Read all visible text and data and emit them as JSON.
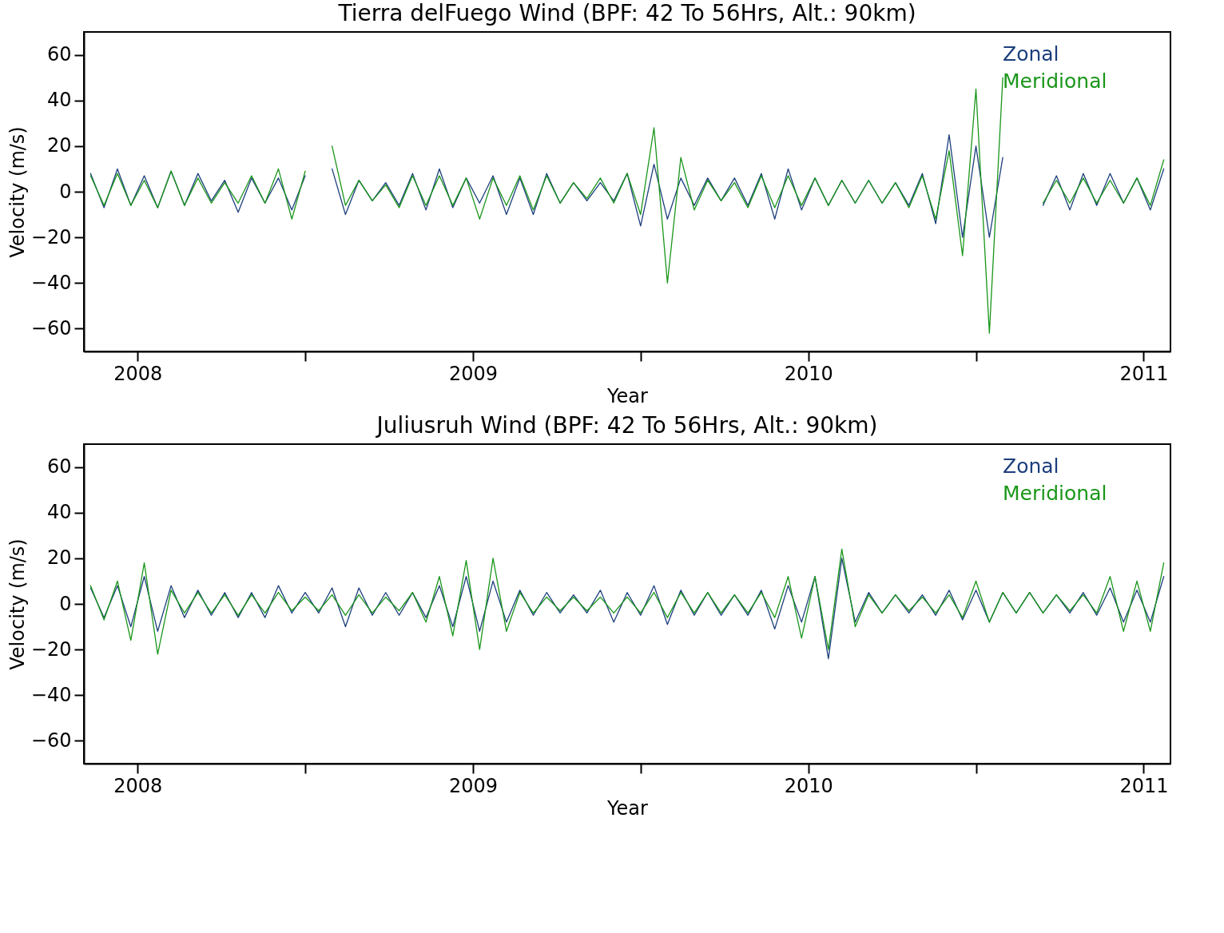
{
  "chart_data": [
    {
      "type": "line",
      "title": "Tierra delFuego Wind (BPF: 42 To 56Hrs, Alt.: 90km)",
      "xlabel": "Year",
      "ylabel": "Velocity (m/s)",
      "xlim": [
        2008.34,
        2011.58
      ],
      "ylim": [
        -70,
        70
      ],
      "yticks": [
        -60,
        -40,
        -20,
        0,
        20,
        40,
        60
      ],
      "xticks": [
        {
          "value": 2008.5,
          "label": "2008"
        },
        {
          "value": 2009,
          "label": null
        },
        {
          "value": 2009.5,
          "label": "2009"
        },
        {
          "value": 2010,
          "label": null
        },
        {
          "value": 2010.5,
          "label": "2010"
        },
        {
          "value": 2011,
          "label": null
        },
        {
          "value": 2011.5,
          "label": "2011"
        }
      ],
      "grid": false,
      "legend": "top right",
      "x": [
        2008.36,
        2008.4,
        2008.44,
        2008.48,
        2008.52,
        2008.56,
        2008.6,
        2008.64,
        2008.68,
        2008.72,
        2008.76,
        2008.8,
        2008.84,
        2008.88,
        2008.92,
        2008.96,
        2009.0,
        2009.04,
        2009.08,
        2009.12,
        2009.16,
        2009.2,
        2009.24,
        2009.28,
        2009.32,
        2009.36,
        2009.4,
        2009.44,
        2009.48,
        2009.52,
        2009.56,
        2009.6,
        2009.64,
        2009.68,
        2009.72,
        2009.76,
        2009.8,
        2009.84,
        2009.88,
        2009.92,
        2009.96,
        2010.0,
        2010.04,
        2010.08,
        2010.12,
        2010.16,
        2010.2,
        2010.24,
        2010.28,
        2010.32,
        2010.36,
        2010.4,
        2010.44,
        2010.48,
        2010.52,
        2010.56,
        2010.6,
        2010.64,
        2010.68,
        2010.72,
        2010.76,
        2010.8,
        2010.84,
        2010.88,
        2010.92,
        2010.96,
        2011.0,
        2011.04,
        2011.08,
        2011.12,
        2011.16,
        2011.2,
        2011.24,
        2011.28,
        2011.32,
        2011.36,
        2011.4,
        2011.44,
        2011.48,
        2011.52,
        2011.56
      ],
      "series": [
        {
          "name": "Zonal",
          "color": "#1c3f7c",
          "values": [
            8,
            -7,
            10,
            -6,
            7,
            -7,
            9,
            -6,
            8,
            -4,
            5,
            -9,
            6,
            -5,
            6,
            -8,
            7,
            null,
            10,
            -10,
            5,
            -4,
            4,
            -6,
            8,
            -8,
            10,
            -7,
            6,
            -5,
            7,
            -10,
            6,
            -10,
            8,
            -5,
            4,
            -4,
            4,
            -4,
            8,
            -15,
            12,
            -12,
            6,
            -6,
            6,
            -4,
            6,
            -6,
            8,
            -12,
            10,
            -8,
            6,
            -6,
            5,
            -5,
            5,
            -5,
            4,
            -6,
            8,
            -14,
            25,
            -20,
            20,
            -20,
            15,
            null,
            null,
            -6,
            7,
            -8,
            8,
            -6,
            8,
            -5,
            6,
            -8,
            10
          ]
        },
        {
          "name": "Meridional",
          "color": "#1a961a",
          "values": [
            7,
            -6,
            8,
            -6,
            5,
            -7,
            9,
            -6,
            6,
            -5,
            4,
            -5,
            7,
            -5,
            10,
            -12,
            9,
            null,
            20,
            -6,
            5,
            -4,
            3,
            -7,
            7,
            -6,
            7,
            -6,
            6,
            -12,
            6,
            -6,
            7,
            -8,
            7,
            -5,
            4,
            -3,
            6,
            -5,
            8,
            -10,
            28,
            -40,
            15,
            -8,
            5,
            -4,
            4,
            -7,
            7,
            -7,
            7,
            -6,
            6,
            -6,
            5,
            -5,
            5,
            -5,
            4,
            -7,
            7,
            -12,
            18,
            -28,
            45,
            -62,
            50,
            null,
            null,
            -5,
            5,
            -5,
            6,
            -5,
            5,
            -5,
            6,
            -6,
            14
          ]
        }
      ]
    },
    {
      "type": "line",
      "title": "Juliusruh Wind (BPF: 42 To 56Hrs, Alt.: 90km)",
      "xlabel": "Year",
      "ylabel": "Velocity (m/s)",
      "xlim": [
        2008.34,
        2011.58
      ],
      "ylim": [
        -70,
        70
      ],
      "yticks": [
        -60,
        -40,
        -20,
        0,
        20,
        40,
        60
      ],
      "xticks": [
        {
          "value": 2008.5,
          "label": "2008"
        },
        {
          "value": 2009,
          "label": null
        },
        {
          "value": 2009.5,
          "label": "2009"
        },
        {
          "value": 2010,
          "label": null
        },
        {
          "value": 2010.5,
          "label": "2010"
        },
        {
          "value": 2011,
          "label": null
        },
        {
          "value": 2011.5,
          "label": "2011"
        }
      ],
      "grid": false,
      "legend": "top right",
      "x": [
        2008.36,
        2008.4,
        2008.44,
        2008.48,
        2008.52,
        2008.56,
        2008.6,
        2008.64,
        2008.68,
        2008.72,
        2008.76,
        2008.8,
        2008.84,
        2008.88,
        2008.92,
        2008.96,
        2009.0,
        2009.04,
        2009.08,
        2009.12,
        2009.16,
        2009.2,
        2009.24,
        2009.28,
        2009.32,
        2009.36,
        2009.4,
        2009.44,
        2009.48,
        2009.52,
        2009.56,
        2009.6,
        2009.64,
        2009.68,
        2009.72,
        2009.76,
        2009.8,
        2009.84,
        2009.88,
        2009.92,
        2009.96,
        2010.0,
        2010.04,
        2010.08,
        2010.12,
        2010.16,
        2010.2,
        2010.24,
        2010.28,
        2010.32,
        2010.36,
        2010.4,
        2010.44,
        2010.48,
        2010.52,
        2010.56,
        2010.6,
        2010.64,
        2010.68,
        2010.72,
        2010.76,
        2010.8,
        2010.84,
        2010.88,
        2010.92,
        2010.96,
        2011.0,
        2011.04,
        2011.08,
        2011.12,
        2011.16,
        2011.2,
        2011.24,
        2011.28,
        2011.32,
        2011.36,
        2011.4,
        2011.44,
        2011.48,
        2011.52,
        2011.56
      ],
      "series": [
        {
          "name": "Zonal",
          "color": "#1c3f7c",
          "values": [
            7,
            -6,
            8,
            -10,
            12,
            -12,
            8,
            -6,
            6,
            -5,
            5,
            -6,
            5,
            -6,
            8,
            -4,
            5,
            -4,
            7,
            -10,
            7,
            -5,
            5,
            -5,
            5,
            -6,
            8,
            -10,
            12,
            -12,
            10,
            -8,
            6,
            -5,
            5,
            -4,
            4,
            -4,
            6,
            -8,
            5,
            -5,
            8,
            -9,
            6,
            -5,
            5,
            -5,
            4,
            -5,
            6,
            -11,
            8,
            -8,
            12,
            -24,
            20,
            -8,
            5,
            -4,
            4,
            -4,
            4,
            -5,
            6,
            -7,
            6,
            -8,
            5,
            -4,
            5,
            -4,
            4,
            -4,
            5,
            -5,
            7,
            -8,
            6,
            -8,
            12
          ]
        },
        {
          "name": "Meridional",
          "color": "#1a961a",
          "values": [
            8,
            -7,
            10,
            -16,
            18,
            -22,
            6,
            -4,
            5,
            -4,
            4,
            -5,
            4,
            -4,
            5,
            -3,
            3,
            -3,
            4,
            -5,
            4,
            -4,
            3,
            -3,
            5,
            -8,
            12,
            -14,
            19,
            -20,
            20,
            -12,
            5,
            -4,
            3,
            -3,
            3,
            -3,
            3,
            -4,
            3,
            -4,
            5,
            -6,
            5,
            -4,
            5,
            -4,
            4,
            -4,
            5,
            -6,
            12,
            -15,
            12,
            -20,
            24,
            -10,
            4,
            -4,
            4,
            -3,
            3,
            -4,
            4,
            -6,
            10,
            -8,
            5,
            -4,
            5,
            -4,
            4,
            -3,
            4,
            -4,
            12,
            -12,
            10,
            -12,
            18
          ]
        }
      ]
    }
  ]
}
